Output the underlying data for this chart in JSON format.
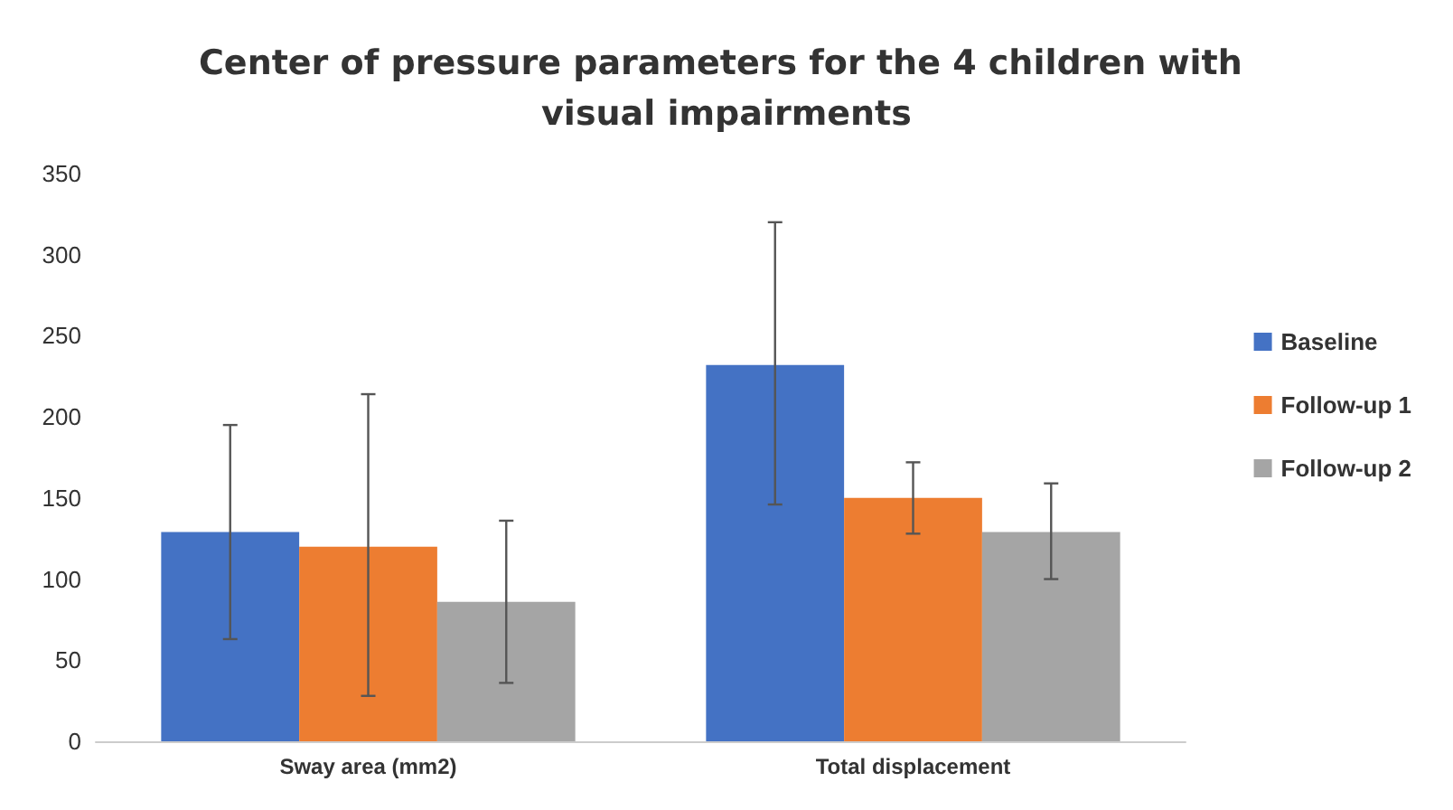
{
  "chart_data": {
    "type": "bar",
    "title": "Center of pressure parameters for the 4 children with visual impairments",
    "categories": [
      "Sway area (mm2)",
      "Total displacement"
    ],
    "series": [
      {
        "name": "Baseline",
        "color": "#4472c4",
        "values": [
          129,
          232
        ],
        "errors": [
          [
            63,
            195
          ],
          [
            146,
            320
          ]
        ]
      },
      {
        "name": "Follow-up 1",
        "color": "#ed7d31",
        "values": [
          120,
          150
        ],
        "errors": [
          [
            28,
            214
          ],
          [
            128,
            172
          ]
        ]
      },
      {
        "name": "Follow-up 2",
        "color": "#a5a5a5",
        "values": [
          86,
          129
        ],
        "errors": [
          [
            36,
            136
          ],
          [
            100,
            159
          ]
        ]
      }
    ],
    "ylim": [
      0,
      350
    ],
    "yticks": [
      0,
      50,
      100,
      150,
      200,
      250,
      300,
      350
    ],
    "grid": false,
    "legend": "right"
  }
}
